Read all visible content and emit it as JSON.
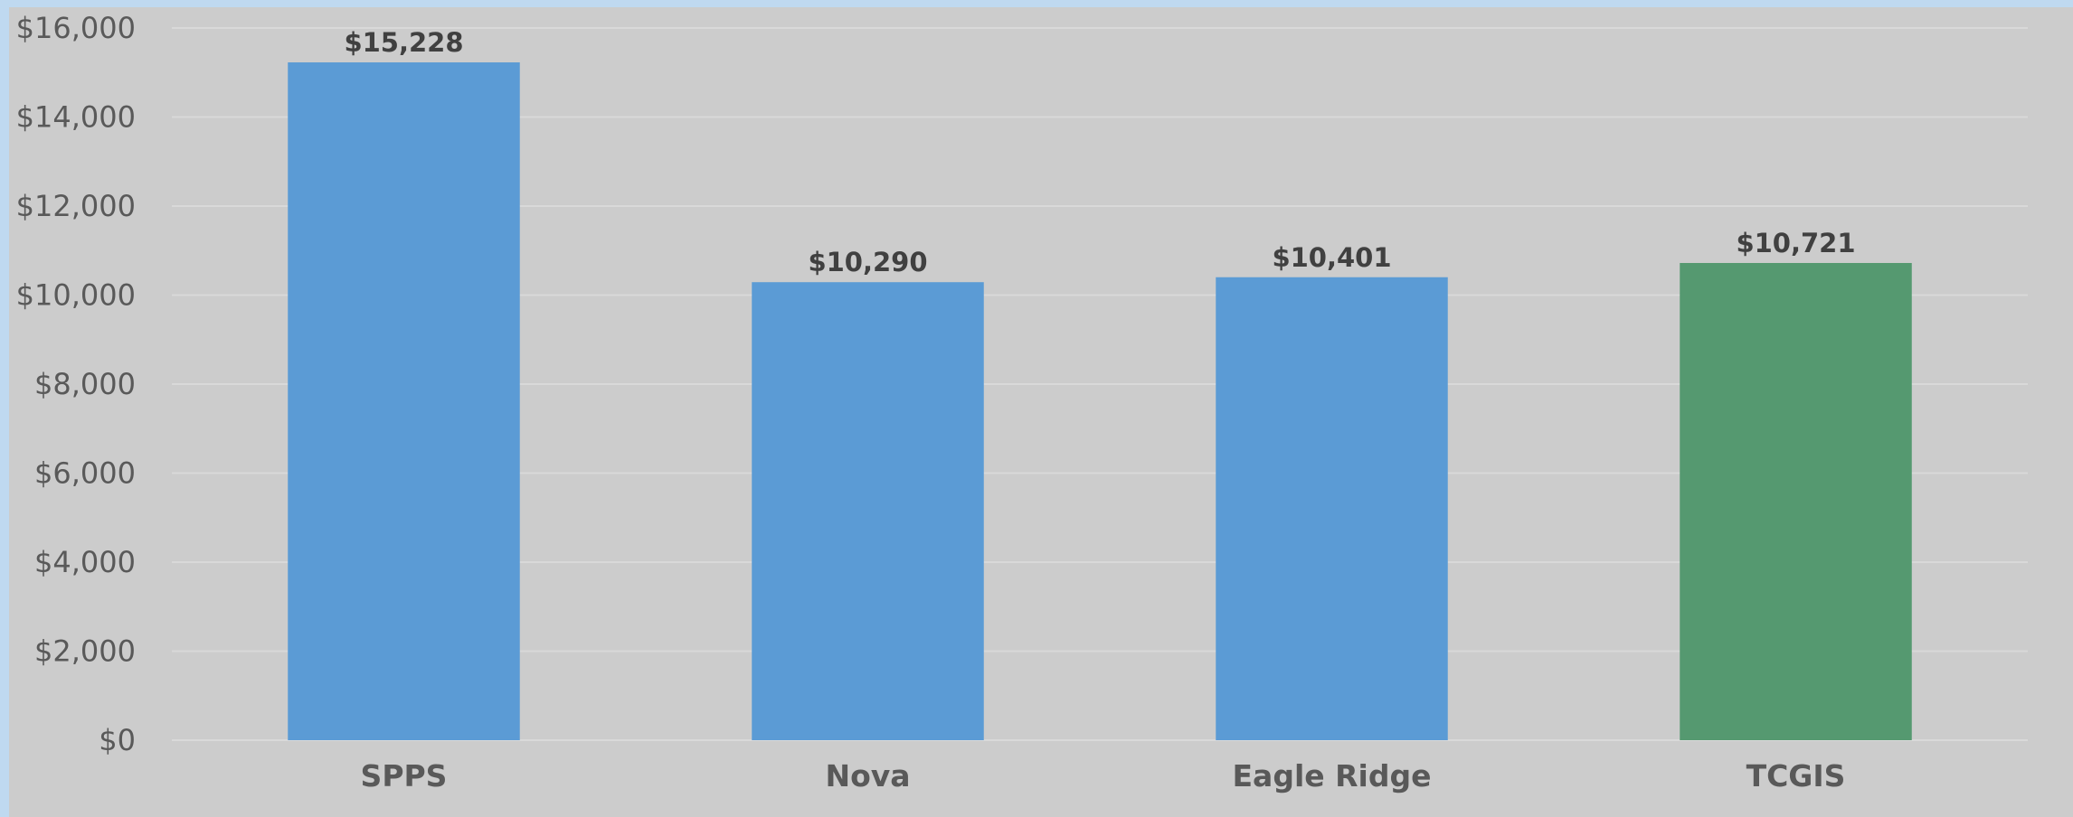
{
  "chart_data": {
    "type": "bar",
    "title": "",
    "xlabel": "",
    "ylabel": "",
    "categories": [
      "SPPS",
      "Nova",
      "Eagle Ridge",
      "TCGIS"
    ],
    "values": [
      15228,
      10290,
      10401,
      10721
    ],
    "value_labels": [
      "$15,228",
      "$10,290",
      "$10,401",
      "$10,721"
    ],
    "bar_colors": [
      "#5b9bd5",
      "#5b9bd5",
      "#5b9bd5",
      "#559970"
    ],
    "ylim": [
      0,
      16000
    ],
    "y_ticks": [
      0,
      2000,
      4000,
      6000,
      8000,
      10000,
      12000,
      14000,
      16000
    ],
    "y_tick_labels": [
      "$0",
      "$2,000",
      "$4,000",
      "$6,000",
      "$8,000",
      "$10,000",
      "$12,000",
      "$14,000",
      "$16,000"
    ],
    "grid": true,
    "legend": "none"
  },
  "colors": {
    "page_background": "#bfd9f0",
    "plot_background": "#cccccc",
    "gridline": "#d9d9d9",
    "axis_text": "#595959",
    "data_label_text": "#404040"
  }
}
